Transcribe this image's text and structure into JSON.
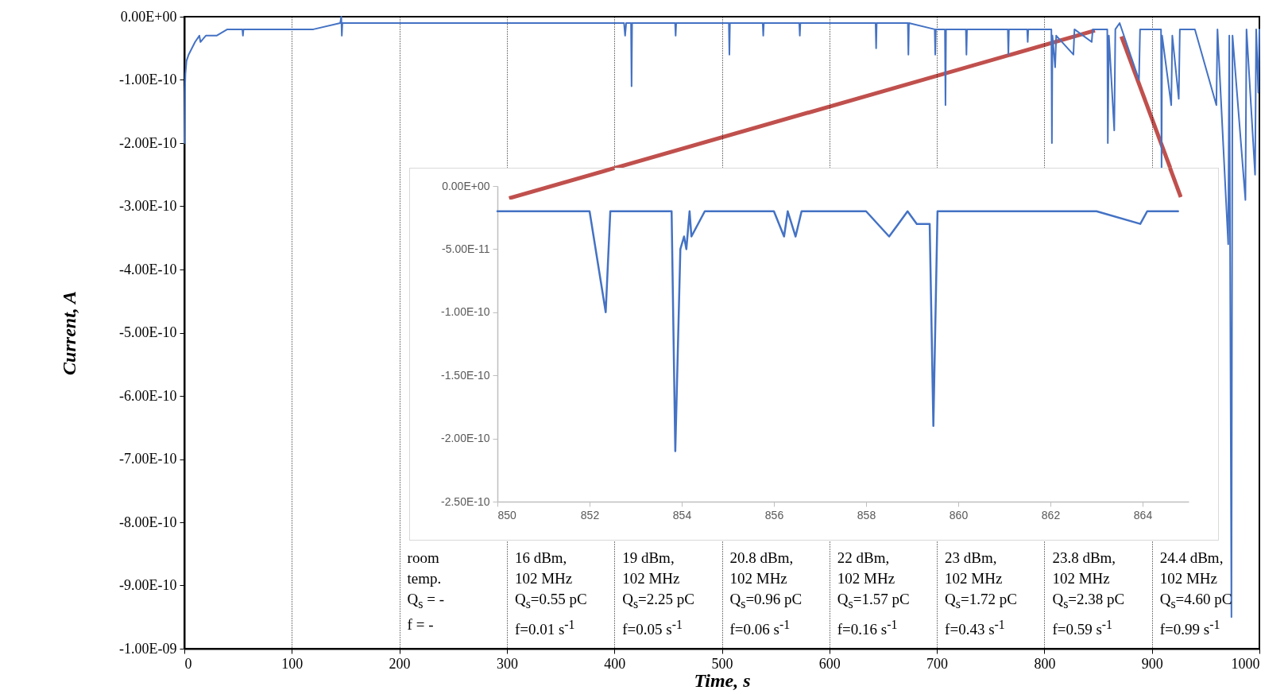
{
  "chart_data": [
    {
      "type": "line",
      "xlabel": "Time, s",
      "ylabel": "Current, A",
      "xlim": [
        0,
        1000
      ],
      "ylim": [
        -1e-09,
        0
      ],
      "xticks": [
        0,
        100,
        200,
        300,
        400,
        500,
        600,
        700,
        800,
        900,
        1000
      ],
      "yticks": [
        {
          "value": 0,
          "label": "0.00E+00"
        },
        {
          "value": -1e-10,
          "label": "-1.00E-10"
        },
        {
          "value": -2e-10,
          "label": "-2.00E-10"
        },
        {
          "value": -3e-10,
          "label": "-3.00E-10"
        },
        {
          "value": -4e-10,
          "label": "-4.00E-10"
        },
        {
          "value": -5e-10,
          "label": "-5.00E-10"
        },
        {
          "value": -6e-10,
          "label": "-6.00E-10"
        },
        {
          "value": -7e-10,
          "label": "-7.00E-10"
        },
        {
          "value": -8e-10,
          "label": "-8.00E-10"
        },
        {
          "value": -9e-10,
          "label": "-9.00E-10"
        },
        {
          "value": -1e-09,
          "label": "-1.00E-09"
        }
      ],
      "grid": "x",
      "x": [
        0,
        0.5,
        1,
        2,
        4,
        7,
        10,
        14,
        15,
        20,
        30,
        40,
        54,
        54.5,
        55,
        75,
        100,
        120,
        145,
        146,
        146.5,
        147,
        200,
        250,
        300,
        350,
        400,
        409,
        410,
        411,
        415.5,
        416,
        416.5,
        456.5,
        457,
        457.5,
        500,
        506.5,
        507,
        507.5,
        538,
        538.5,
        539,
        572,
        572.5,
        573,
        600,
        643,
        643.5,
        644,
        673,
        673.5,
        674,
        698,
        698.5,
        699,
        707.5,
        708,
        708.5,
        727,
        727.5,
        728,
        766,
        766.5,
        767,
        784,
        784.5,
        785,
        800,
        806.5,
        807,
        807.5,
        810,
        811,
        827,
        828,
        844,
        845,
        850,
        858.5,
        859,
        860,
        865,
        866,
        870,
        888,
        889,
        900,
        908.5,
        909,
        909.5,
        918,
        919,
        925,
        926,
        940,
        960,
        961,
        971,
        972,
        974,
        975,
        987,
        988,
        996,
        997,
        999,
        1000
      ],
      "series": [
        {
          "color": "#4472c4",
          "values": [
            -2e-10,
            -1.2e-10,
            -9e-11,
            -7e-11,
            -6e-11,
            -5e-11,
            -4e-11,
            -3e-11,
            -4e-11,
            -3e-11,
            -3e-11,
            -2e-11,
            -2e-11,
            -3e-11,
            -2e-11,
            -2e-11,
            -2e-11,
            -2e-11,
            -1e-11,
            0,
            -3e-11,
            -1e-11,
            -1e-11,
            -1e-11,
            -1e-11,
            -1e-11,
            -1e-11,
            -1e-11,
            -3e-11,
            -1e-11,
            -1e-11,
            -1.1e-10,
            -1e-11,
            -1e-11,
            -3e-11,
            -1e-11,
            -1e-11,
            -1e-11,
            -6e-11,
            -1e-11,
            -1e-11,
            -3e-11,
            -1e-11,
            -1e-11,
            -3e-11,
            -1e-11,
            -1e-11,
            -1e-11,
            -5e-11,
            -1e-11,
            -1e-11,
            -6e-11,
            -1e-11,
            -2e-11,
            -6e-11,
            -2e-11,
            -2e-11,
            -1.4e-10,
            -2e-11,
            -2e-11,
            -6e-11,
            -2e-11,
            -2e-11,
            -6e-11,
            -2e-11,
            -2e-11,
            -4e-11,
            -2e-11,
            -2e-11,
            -2e-11,
            -2e-10,
            -3e-11,
            -8e-11,
            -3e-11,
            -6e-11,
            -2e-11,
            -4e-11,
            -2e-11,
            -2e-11,
            -2e-11,
            -2e-10,
            -3e-11,
            -1.8e-10,
            -2e-11,
            -1e-11,
            -1e-10,
            -2e-11,
            -2e-11,
            -2e-11,
            -2.4e-10,
            -3e-11,
            -1.4e-10,
            -3e-11,
            -1.3e-10,
            -2e-11,
            -2e-11,
            -1.4e-10,
            -2e-11,
            -3.6e-10,
            -3e-11,
            -9.5e-10,
            -3e-11,
            -2.9e-10,
            -2e-11,
            -2.5e-10,
            -2e-11,
            -1.2e-10,
            -2e-11
          ]
        }
      ],
      "annotations": [
        "room\ntemp.\nQ$_{s}$ = -\nf = -",
        "16 dBm,\n102 MHz\nQ$_{s}$=0.55 pC\nf=0.01 s$^{-1}$",
        "19 dBm,\n102 MHz\nQ$_{s}$=2.25 pC\nf=0.05 s$^{-1}$",
        "20.8 dBm,\n102 MHz\nQ$_{s}$=0.96 pC\nf=0.06 s$^{-1}$",
        "22 dBm,\n102 MHz\nQ$_{s}$=1.57 pC\nf=0.16 s$^{-1}$",
        "23 dBm,\n102 MHz\nQ$_{s}$=1.72 pC\nf=0.43 s$^{-1}$",
        "23.8 dBm,\n102 MHz\nQ$_{s}$=2.38 pC\nf=0.59 s$^{-1}$",
        "24.4 dBm,\n102 MHz\nQ$_{s}$=4.60 pC\nf=0.99 s$^{-1}$"
      ]
    },
    {
      "type": "line",
      "xlim": [
        850,
        865
      ],
      "ylim": [
        -2.5e-10,
        0
      ],
      "xticks": [
        850,
        852,
        854,
        856,
        858,
        860,
        862,
        864
      ],
      "yticks": [
        {
          "value": 0,
          "label": "0.00E+00"
        },
        {
          "value": -5e-11,
          "label": "-5.00E-11"
        },
        {
          "value": -1e-10,
          "label": "-1.00E-10"
        },
        {
          "value": -1.5e-10,
          "label": "-1.50E-10"
        },
        {
          "value": -2e-10,
          "label": "-2.00E-10"
        },
        {
          "value": -2.5e-10,
          "label": "-2.50E-10"
        }
      ],
      "x": [
        850,
        850.3,
        850.5,
        851,
        851.4,
        851.6,
        852,
        852.35,
        852.45,
        852.8,
        853,
        853.4,
        853.78,
        853.86,
        853.97,
        854.05,
        854.1,
        854.17,
        854.21,
        854.5,
        855,
        855.5,
        856,
        856.22,
        856.3,
        856.47,
        856.6,
        857,
        857.5,
        858,
        858.5,
        858.7,
        858.9,
        859.1,
        859.38,
        859.46,
        859.55,
        860,
        861,
        861.58,
        862,
        863,
        863.95,
        864.1,
        864.5,
        864.77
      ],
      "series": [
        {
          "color": "#4472c4",
          "values": [
            -2e-11,
            -2e-11,
            -2e-11,
            -2e-11,
            -2e-11,
            -2e-11,
            -2e-11,
            -1e-10,
            -2e-11,
            -2e-11,
            -2e-11,
            -2e-11,
            -2e-11,
            -2.1e-10,
            -5e-11,
            -4e-11,
            -5e-11,
            -2e-11,
            -4e-11,
            -2e-11,
            -2e-11,
            -2e-11,
            -2e-11,
            -4e-11,
            -2e-11,
            -4e-11,
            -2e-11,
            -2e-11,
            -2e-11,
            -2e-11,
            -4e-11,
            -3e-11,
            -2e-11,
            -3e-11,
            -3e-11,
            -1.9e-10,
            -2e-11,
            -2e-11,
            -2e-11,
            -2e-11,
            -2e-11,
            -2e-11,
            -3e-11,
            -2e-11,
            -2e-11,
            -2e-11
          ]
        }
      ]
    }
  ]
}
